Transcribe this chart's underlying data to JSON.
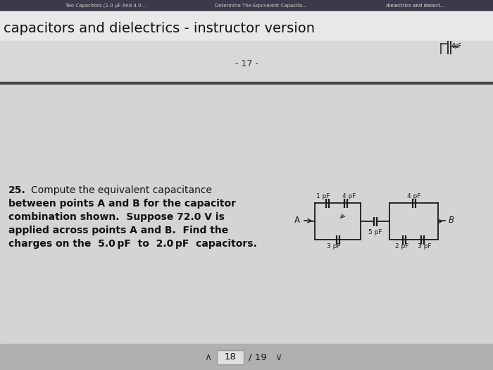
{
  "bg_tabbar": "#4a4a5a",
  "bg_header": "#e0e0e0",
  "bg_page": "#d0d0d0",
  "bg_content": "#d8d8d8",
  "bg_nav": "#b8b8b8",
  "title": "capacitors and dielectrics - instructor version",
  "page_num": "- 17 -",
  "question_num": "25.",
  "question_text1": "Compute the equivalent capacitance",
  "question_text2": "between points A and B for the capacitor",
  "question_text3": "combination shown.  Suppose 72.0 V is",
  "question_text4": "applied across points A and B.  Find the",
  "question_text5": "charges on the  5.0 pF  to  2.0 pF  capacitors.",
  "tab1": "Two Capacitors (2.0 μF And 4.0...",
  "tab2": "Determine The Equivalent Capacita...",
  "tab3": "dielectrics and dielect...",
  "nav_text": "18",
  "nav_total": "/ 19",
  "circ_color": "#222222",
  "text_color": "#111111",
  "title_color": "#111111"
}
